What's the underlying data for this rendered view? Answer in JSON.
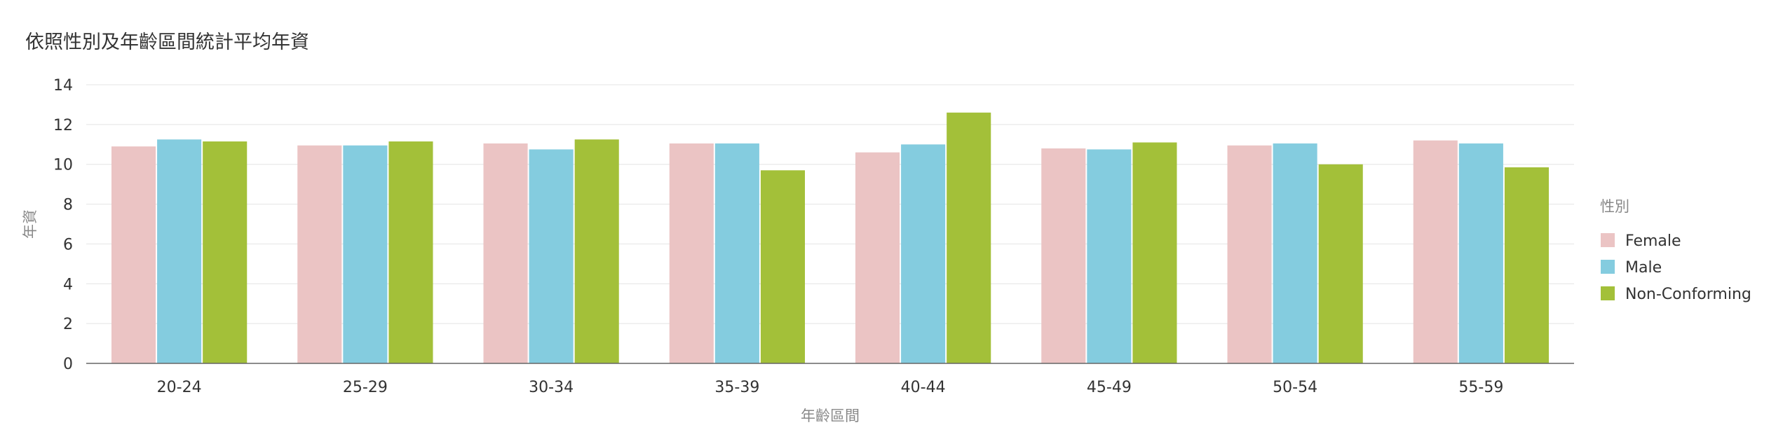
{
  "chart_data": {
    "type": "bar",
    "title": "依照性別及年齡區間統計平均年資",
    "xlabel": "年齡區間",
    "ylabel": "年資",
    "categories": [
      "20-24",
      "25-29",
      "30-34",
      "35-39",
      "40-44",
      "45-49",
      "50-54",
      "55-59"
    ],
    "ylim": [
      0,
      14
    ],
    "yticks": [
      0,
      2,
      4,
      6,
      8,
      10,
      12,
      14
    ],
    "grid": true,
    "legend_title": "性別",
    "legend_position": "right",
    "series": [
      {
        "name": "Female",
        "color": "#EBC4C4",
        "values": [
          10.9,
          10.95,
          11.05,
          11.05,
          10.6,
          10.8,
          10.95,
          11.2
        ]
      },
      {
        "name": "Male",
        "color": "#84CCDF",
        "values": [
          11.25,
          10.95,
          10.75,
          11.05,
          11.0,
          10.75,
          11.05,
          11.05
        ]
      },
      {
        "name": "Non-Conforming",
        "color": "#A3C039",
        "values": [
          11.15,
          11.15,
          11.25,
          9.7,
          12.6,
          11.1,
          10.0,
          9.85
        ]
      }
    ]
  }
}
